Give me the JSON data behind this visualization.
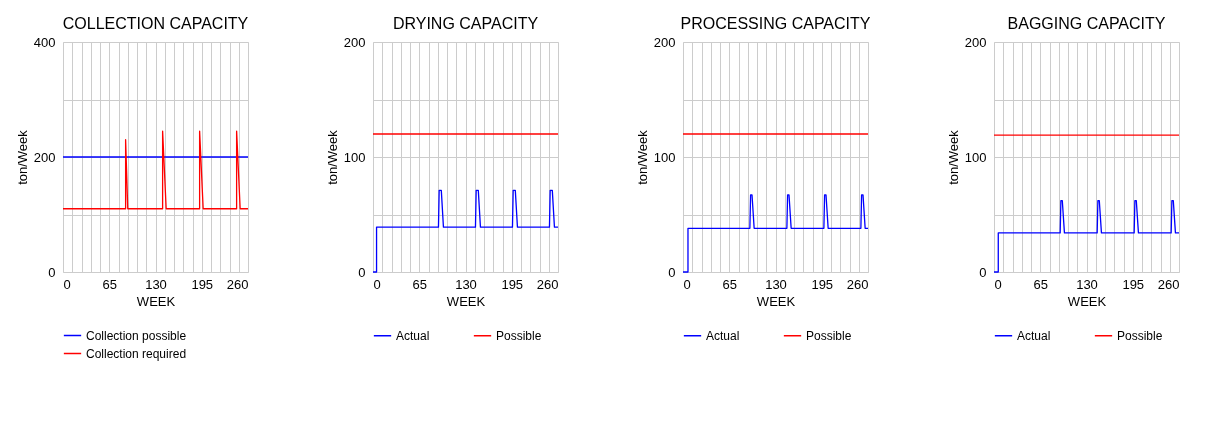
{
  "chart_data": [
    {
      "type": "line",
      "title": "COLLECTION CAPACITY",
      "xlabel": "WEEK",
      "ylabel": "ton/Week",
      "xlim": [
        0,
        260
      ],
      "ylim": [
        0,
        400
      ],
      "xticks": [
        0,
        {
          "value": 13,
          "label": null
        },
        {
          "value": 26,
          "label": null
        },
        {
          "value": 39,
          "label": null
        },
        {
          "value": 52,
          "label": null
        },
        65,
        {
          "value": 78,
          "label": null
        },
        {
          "value": 91,
          "label": null
        },
        {
          "value": 104,
          "label": null
        },
        {
          "value": 117,
          "label": null
        },
        130,
        {
          "value": 143,
          "label": null
        },
        {
          "value": 156,
          "label": null
        },
        {
          "value": 169,
          "label": null
        },
        {
          "value": 182,
          "label": null
        },
        195,
        {
          "value": 208,
          "label": null
        },
        {
          "value": 221,
          "label": null
        },
        {
          "value": 234,
          "label": null
        },
        {
          "value": 247,
          "label": null
        },
        260
      ],
      "yticks": [
        0,
        {
          "value": 100,
          "label": null
        },
        200,
        {
          "value": 300,
          "label": null
        },
        400
      ],
      "grid": true,
      "legend": "bottom",
      "series": [
        {
          "name": "Collection possible",
          "color": "#0000ff",
          "x": [
            0,
            260
          ],
          "values": [
            200,
            200
          ]
        },
        {
          "name": "Collection required",
          "color": "#ff0000",
          "x": [
            0,
            88,
            88,
            91,
            140,
            140,
            145,
            192,
            192,
            197,
            244,
            244,
            249,
            260
          ],
          "values": [
            110,
            110,
            230,
            110,
            110,
            245,
            110,
            110,
            245,
            110,
            110,
            245,
            110,
            110
          ]
        }
      ]
    },
    {
      "type": "line",
      "title": "DRYING CAPACITY",
      "xlabel": "WEEK",
      "ylabel": "ton/Week",
      "xlim": [
        0,
        260
      ],
      "ylim": [
        0,
        200
      ],
      "xticks": [
        0,
        {
          "value": 13,
          "label": null
        },
        {
          "value": 26,
          "label": null
        },
        {
          "value": 39,
          "label": null
        },
        {
          "value": 52,
          "label": null
        },
        65,
        {
          "value": 78,
          "label": null
        },
        {
          "value": 91,
          "label": null
        },
        {
          "value": 104,
          "label": null
        },
        {
          "value": 117,
          "label": null
        },
        130,
        {
          "value": 143,
          "label": null
        },
        {
          "value": 156,
          "label": null
        },
        {
          "value": 169,
          "label": null
        },
        {
          "value": 182,
          "label": null
        },
        195,
        {
          "value": 208,
          "label": null
        },
        {
          "value": 221,
          "label": null
        },
        {
          "value": 234,
          "label": null
        },
        {
          "value": 247,
          "label": null
        },
        260
      ],
      "yticks": [
        0,
        {
          "value": 50,
          "label": null
        },
        100,
        {
          "value": 150,
          "label": null
        },
        200
      ],
      "grid": true,
      "legend": "bottom",
      "series": [
        {
          "name": "Actual",
          "color": "#0000ff",
          "x": [
            0,
            5,
            5,
            92,
            93,
            96,
            99,
            144,
            145,
            148,
            151,
            196,
            197,
            200,
            203,
            248,
            249,
            252,
            255,
            260
          ],
          "values": [
            0,
            0,
            39,
            39,
            71,
            71,
            39,
            39,
            71,
            71,
            39,
            39,
            71,
            71,
            39,
            39,
            71,
            71,
            39,
            39
          ]
        },
        {
          "name": "Possible",
          "color": "#ff0000",
          "x": [
            0,
            260
          ],
          "values": [
            120,
            120
          ]
        }
      ]
    },
    {
      "type": "line",
      "title": "PROCESSING CAPACITY",
      "xlabel": "WEEK",
      "ylabel": "ton/Week",
      "xlim": [
        0,
        260
      ],
      "ylim": [
        0,
        200
      ],
      "xticks": [
        0,
        {
          "value": 13,
          "label": null
        },
        {
          "value": 26,
          "label": null
        },
        {
          "value": 39,
          "label": null
        },
        {
          "value": 52,
          "label": null
        },
        65,
        {
          "value": 78,
          "label": null
        },
        {
          "value": 91,
          "label": null
        },
        {
          "value": 104,
          "label": null
        },
        {
          "value": 117,
          "label": null
        },
        130,
        {
          "value": 143,
          "label": null
        },
        {
          "value": 156,
          "label": null
        },
        {
          "value": 169,
          "label": null
        },
        {
          "value": 182,
          "label": null
        },
        195,
        {
          "value": 208,
          "label": null
        },
        {
          "value": 221,
          "label": null
        },
        {
          "value": 234,
          "label": null
        },
        {
          "value": 247,
          "label": null
        },
        260
      ],
      "yticks": [
        0,
        {
          "value": 50,
          "label": null
        },
        100,
        {
          "value": 150,
          "label": null
        },
        200
      ],
      "grid": true,
      "legend": "bottom",
      "series": [
        {
          "name": "Actual",
          "color": "#0000ff",
          "x": [
            0,
            7,
            7,
            94,
            95,
            97,
            100,
            146,
            147,
            149,
            152,
            198,
            199,
            201,
            204,
            250,
            251,
            253,
            256,
            260
          ],
          "values": [
            0,
            0,
            38,
            38,
            67,
            67,
            38,
            38,
            67,
            67,
            38,
            38,
            67,
            67,
            38,
            38,
            67,
            67,
            38,
            38
          ]
        },
        {
          "name": "Possible",
          "color": "#ff0000",
          "x": [
            0,
            260
          ],
          "values": [
            120,
            120
          ]
        }
      ]
    },
    {
      "type": "line",
      "title": "BAGGING CAPACITY",
      "xlabel": "WEEK",
      "ylabel": "ton/Week",
      "xlim": [
        0,
        260
      ],
      "ylim": [
        0,
        200
      ],
      "xticks": [
        0,
        {
          "value": 13,
          "label": null
        },
        {
          "value": 26,
          "label": null
        },
        {
          "value": 39,
          "label": null
        },
        {
          "value": 52,
          "label": null
        },
        65,
        {
          "value": 78,
          "label": null
        },
        {
          "value": 91,
          "label": null
        },
        {
          "value": 104,
          "label": null
        },
        {
          "value": 117,
          "label": null
        },
        130,
        {
          "value": 143,
          "label": null
        },
        {
          "value": 156,
          "label": null
        },
        {
          "value": 169,
          "label": null
        },
        {
          "value": 182,
          "label": null
        },
        195,
        {
          "value": 208,
          "label": null
        },
        {
          "value": 221,
          "label": null
        },
        {
          "value": 234,
          "label": null
        },
        {
          "value": 247,
          "label": null
        },
        260
      ],
      "yticks": [
        0,
        {
          "value": 50,
          "label": null
        },
        100,
        {
          "value": 150,
          "label": null
        },
        200
      ],
      "grid": true,
      "legend": "bottom",
      "series": [
        {
          "name": "Actual",
          "color": "#0000ff",
          "x": [
            0,
            6,
            6,
            93,
            94,
            96,
            99,
            145,
            146,
            148,
            151,
            197,
            198,
            200,
            203,
            249,
            250,
            252,
            255,
            260
          ],
          "values": [
            0,
            0,
            34,
            34,
            62,
            62,
            34,
            34,
            62,
            62,
            34,
            34,
            62,
            62,
            34,
            34,
            62,
            62,
            34,
            34
          ]
        },
        {
          "name": "Possible",
          "color": "#ff0000",
          "x": [
            0,
            260
          ],
          "values": [
            119,
            119
          ]
        }
      ]
    }
  ]
}
